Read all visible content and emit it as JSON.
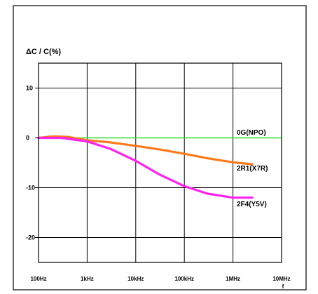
{
  "chart_data": {
    "type": "line",
    "ylabel": "ΔC / C(%)",
    "xlabel": "f",
    "x_ticks": [
      "100Hz",
      "1kHz",
      "10kHz",
      "100kHz",
      "1MHz",
      "10MHz"
    ],
    "y_ticks": [
      {
        "value": 10,
        "label": "10"
      },
      {
        "value": 0,
        "label": "0"
      },
      {
        "value": -10,
        "label": "-10"
      },
      {
        "value": -20,
        "label": "-20"
      }
    ],
    "ylim": [
      -25,
      15
    ],
    "x_log_decades": [
      2,
      7
    ],
    "grid": true,
    "series": [
      {
        "name": "0G(NPO)",
        "color": "#33dd33",
        "x": [
          100,
          1000,
          10000,
          100000,
          1000000,
          10000000
        ],
        "values": [
          0,
          0,
          0,
          0,
          0,
          0
        ]
      },
      {
        "name": "2R1(X7R)",
        "color": "#ff7a1a",
        "x": [
          100,
          200,
          400,
          1000,
          3000,
          10000,
          30000,
          100000,
          300000,
          1000000,
          2500000
        ],
        "values": [
          0,
          0.3,
          0.2,
          -0.5,
          -0.9,
          -1.6,
          -2.3,
          -3.2,
          -4.1,
          -4.9,
          -5.3
        ]
      },
      {
        "name": "2F4(Y5V)",
        "color": "#ff22ee",
        "x": [
          100,
          300,
          1000,
          3000,
          10000,
          30000,
          100000,
          300000,
          1000000,
          2500000
        ],
        "values": [
          0,
          0,
          -0.7,
          -2.2,
          -4.6,
          -7.3,
          -9.7,
          -11.2,
          -12.0,
          -12.0
        ]
      }
    ]
  }
}
